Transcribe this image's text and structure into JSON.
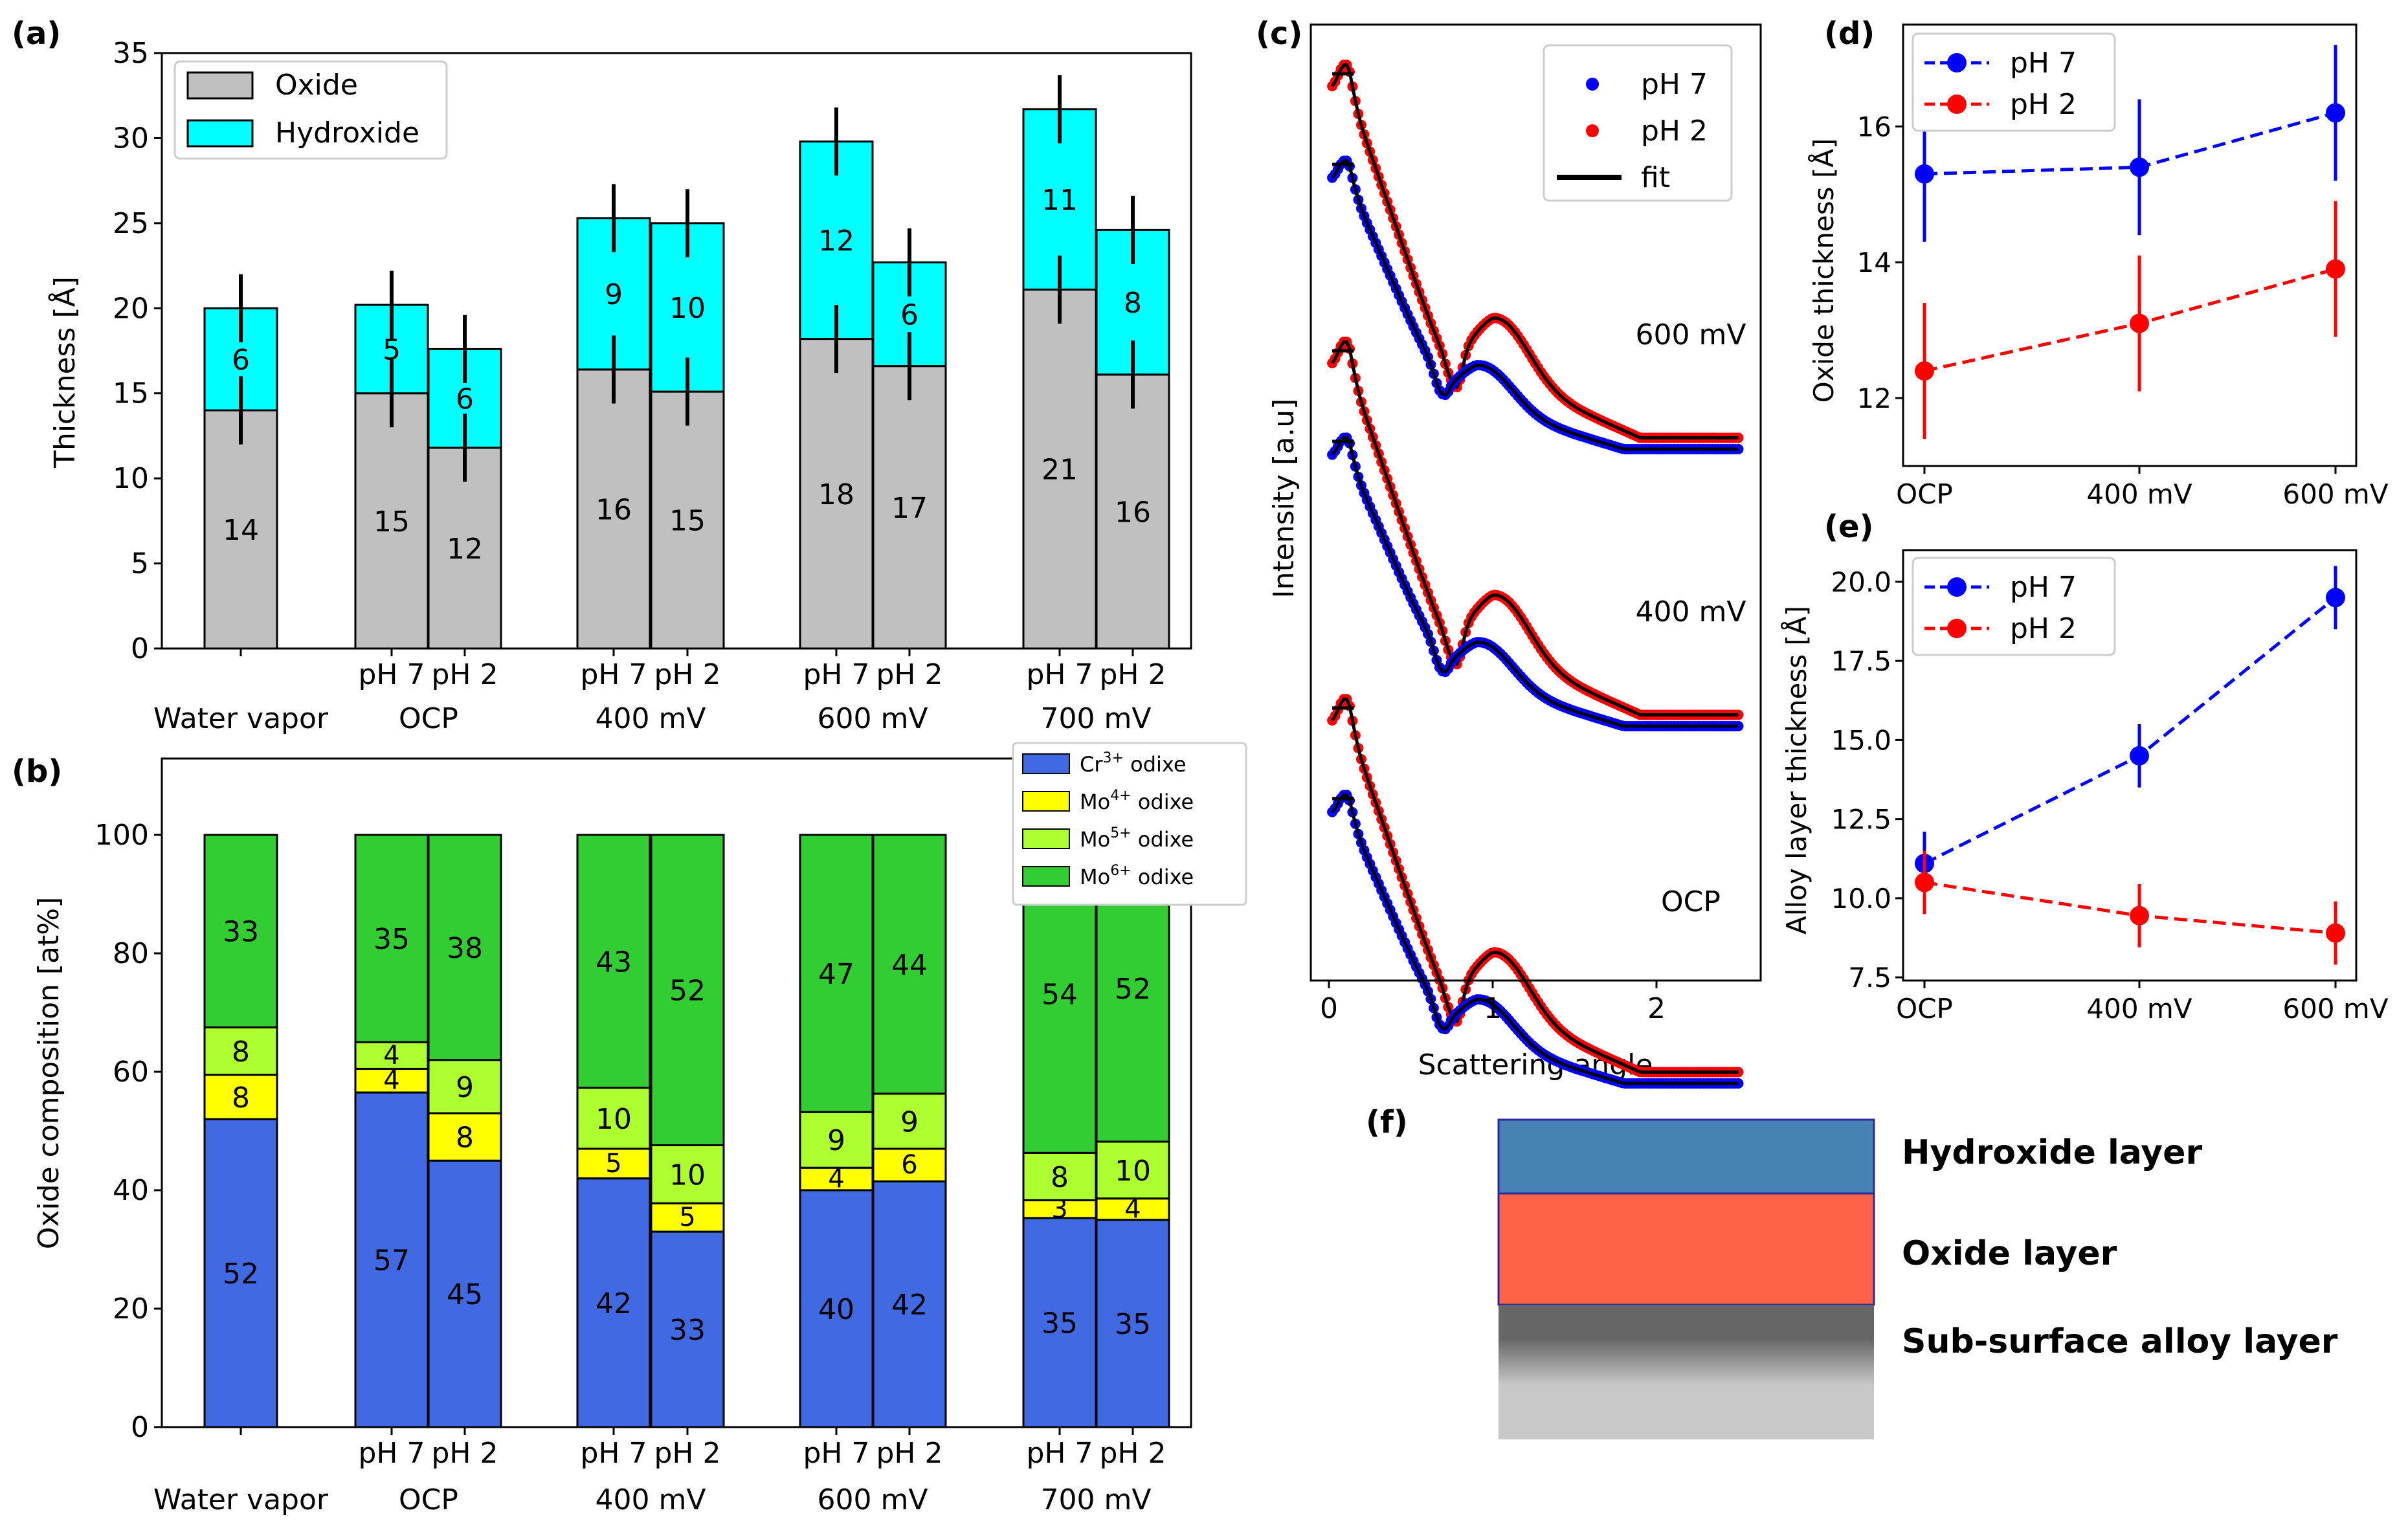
{
  "panels": {
    "a": {
      "letter": "(a)",
      "chart_data": {
        "type": "bar",
        "stacked": true,
        "ylabel": "Thickness [Å]",
        "ylim": [
          0,
          35
        ],
        "yticks": [
          0,
          5,
          10,
          15,
          20,
          25,
          30,
          35
        ],
        "legend": [
          "Oxide",
          "Hydroxide"
        ],
        "legend_position": "top-left",
        "colors": {
          "oxide": "#c0c0c0",
          "hydroxide": "#00ffff"
        },
        "bars": [
          {
            "group": "Water vapor",
            "sub": "",
            "oxide": 14,
            "hydroxide": 6,
            "oxide_label": "14",
            "hydroxide_label": "6",
            "oxide_err": 2,
            "total_err": 2
          },
          {
            "group": "OCP",
            "sub": "pH 7",
            "oxide": 15,
            "hydroxide": 5.2,
            "oxide_label": "15",
            "hydroxide_label": "5",
            "oxide_err": 2,
            "total_err": 2
          },
          {
            "group": "OCP",
            "sub": "pH 2",
            "oxide": 11.8,
            "hydroxide": 5.8,
            "oxide_label": "12",
            "hydroxide_label": "6",
            "oxide_err": 2,
            "total_err": 2
          },
          {
            "group": "400 mV",
            "sub": "pH 7",
            "oxide": 16.4,
            "hydroxide": 8.9,
            "oxide_label": "16",
            "hydroxide_label": "9",
            "oxide_err": 2,
            "total_err": 2
          },
          {
            "group": "400 mV",
            "sub": "pH 2",
            "oxide": 15.1,
            "hydroxide": 9.9,
            "oxide_label": "15",
            "hydroxide_label": "10",
            "oxide_err": 2,
            "total_err": 2
          },
          {
            "group": "600 mV",
            "sub": "pH 7",
            "oxide": 18.2,
            "hydroxide": 11.6,
            "oxide_label": "18",
            "hydroxide_label": "12",
            "oxide_err": 2,
            "total_err": 2
          },
          {
            "group": "600 mV",
            "sub": "pH 2",
            "oxide": 16.6,
            "hydroxide": 6.1,
            "oxide_label": "17",
            "hydroxide_label": "6",
            "oxide_err": 2,
            "total_err": 2
          },
          {
            "group": "700 mV",
            "sub": "pH 7",
            "oxide": 21.1,
            "hydroxide": 10.6,
            "oxide_label": "21",
            "hydroxide_label": "11",
            "oxide_err": 2,
            "total_err": 2
          },
          {
            "group": "700 mV",
            "sub": "pH 2",
            "oxide": 16.1,
            "hydroxide": 8.5,
            "oxide_label": "16",
            "hydroxide_label": "8",
            "oxide_err": 2,
            "total_err": 2
          }
        ],
        "group_labels": [
          "Water vapor",
          "OCP",
          "400 mV",
          "600 mV",
          "700 mV"
        ]
      }
    },
    "b": {
      "letter": "(b)",
      "chart_data": {
        "type": "bar",
        "stacked": true,
        "ylabel": "Oxide composition [at%]",
        "ylim": [
          0,
          100
        ],
        "yticks": [
          0,
          20,
          40,
          60,
          80,
          100
        ],
        "legend_position": "top-right",
        "series": [
          {
            "name": "Cr³⁺ odixe",
            "base": "Cr",
            "sup": "3+",
            "suffix": " odixe",
            "color": "#4169e1"
          },
          {
            "name": "Mo⁴⁺ odixe",
            "base": "Mo",
            "sup": "4+",
            "suffix": " odixe",
            "color": "#ffff00"
          },
          {
            "name": "Mo⁵⁺ odixe",
            "base": "Mo",
            "sup": "5+",
            "suffix": " odixe",
            "color": "#adff2f"
          },
          {
            "name": "Mo⁶⁺ odixe",
            "base": "Mo",
            "sup": "6+",
            "suffix": " odixe",
            "color": "#32cd32"
          }
        ],
        "bars": [
          {
            "group": "Water vapor",
            "sub": "",
            "values": [
              52,
              7.5,
              8,
              32.5
            ],
            "labels": [
              "52",
              "8",
              "8",
              "33"
            ]
          },
          {
            "group": "OCP",
            "sub": "pH 7",
            "values": [
              56.5,
              4,
              4.5,
              35
            ],
            "labels": [
              "57",
              "4",
              "4",
              "35"
            ]
          },
          {
            "group": "OCP",
            "sub": "pH 2",
            "values": [
              45,
              8,
              9,
              38
            ],
            "labels": [
              "45",
              "8",
              "9",
              "38"
            ]
          },
          {
            "group": "400 mV",
            "sub": "pH 7",
            "values": [
              42,
              5,
              10.3,
              42.7
            ],
            "labels": [
              "42",
              "5",
              "10",
              "43"
            ]
          },
          {
            "group": "400 mV",
            "sub": "pH 2",
            "values": [
              33,
              4.8,
              9.8,
              52.4
            ],
            "labels": [
              "33",
              "5",
              "10",
              "52"
            ]
          },
          {
            "group": "600 mV",
            "sub": "pH 7",
            "values": [
              40,
              3.8,
              9.4,
              46.8
            ],
            "labels": [
              "40",
              "4",
              "9",
              "47"
            ]
          },
          {
            "group": "600 mV",
            "sub": "pH 2",
            "values": [
              41.5,
              5.5,
              9.3,
              43.7
            ],
            "labels": [
              "42",
              "6",
              "9",
              "44"
            ]
          },
          {
            "group": "700 mV",
            "sub": "pH 7",
            "values": [
              35.3,
              3,
              8,
              53.7
            ],
            "labels": [
              "35",
              "3",
              "8",
              "54"
            ]
          },
          {
            "group": "700 mV",
            "sub": "pH 2",
            "values": [
              35,
              3.6,
              9.6,
              51.8
            ],
            "labels": [
              "35",
              "4",
              "10",
              "52"
            ]
          }
        ],
        "group_labels": [
          "Water vapor",
          "OCP",
          "400 mV",
          "600 mV",
          "700 mV"
        ]
      }
    },
    "c": {
      "letter": "(c)",
      "chart_data": {
        "type": "scatter",
        "xlabel": "Scattering angle",
        "ylabel": "Intensity [a.u]",
        "xlim": [
          -0.12,
          2.62
        ],
        "xticks": [
          0,
          1,
          2
        ],
        "legend": [
          {
            "name": "pH 7",
            "color": "#0000ff",
            "kind": "dot"
          },
          {
            "name": "pH 2",
            "color": "#ff0000",
            "kind": "dot"
          },
          {
            "name": "fit",
            "color": "#000000",
            "kind": "line"
          }
        ],
        "legend_position": "top-right",
        "curve_x_end": 2.5,
        "pairs": [
          {
            "label": "600 mV",
            "red_offset": 0,
            "blue_offset": 0
          },
          {
            "label": "400 mV",
            "red_offset": 1,
            "blue_offset": 1
          },
          {
            "label": "OCP",
            "red_offset": 2,
            "blue_offset": 2
          }
        ]
      }
    },
    "d": {
      "letter": "(d)",
      "chart_data": {
        "type": "line",
        "ylabel": "Oxide thickness [Å]",
        "categories": [
          "OCP",
          "400 mV",
          "600 mV"
        ],
        "ylim": [
          11,
          17.5
        ],
        "yticks": [
          12,
          14,
          16
        ],
        "legend_position": "top-left",
        "series": [
          {
            "name": "pH 7",
            "color": "#0000ff",
            "values": [
              15.3,
              15.4,
              16.2
            ],
            "errors": [
              1.0,
              1.0,
              1.0
            ]
          },
          {
            "name": "pH 2",
            "color": "#ff0000",
            "values": [
              12.4,
              13.1,
              13.9
            ],
            "errors": [
              1.0,
              1.0,
              1.0
            ]
          }
        ]
      }
    },
    "e": {
      "letter": "(e)",
      "chart_data": {
        "type": "line",
        "ylabel": "Alloy layer thickness [Å]",
        "categories": [
          "OCP",
          "400 mV",
          "600 mV"
        ],
        "ylim": [
          7.4,
          21.0
        ],
        "yticks": [
          7.5,
          10.0,
          12.5,
          15.0,
          17.5,
          20.0
        ],
        "ytick_labels": [
          "7.5",
          "10.0",
          "12.5",
          "15.0",
          "17.5",
          "20.0"
        ],
        "legend_position": "top-left",
        "series": [
          {
            "name": "pH 7",
            "color": "#0000ff",
            "values": [
              11.1,
              14.5,
              19.5
            ],
            "errors": [
              1.0,
              1.0,
              1.0
            ]
          },
          {
            "name": "pH 2",
            "color": "#ff0000",
            "values": [
              10.5,
              9.45,
              8.9
            ],
            "errors": [
              1.0,
              1.0,
              1.0
            ]
          }
        ]
      }
    },
    "f": {
      "letter": "(f)",
      "layers": [
        {
          "label": "Hydroxide layer",
          "color": "#4682b4"
        },
        {
          "label": "Oxide layer",
          "color": "#ff6347"
        },
        {
          "label": "Sub-surface alloy layer",
          "color_top": "#666666",
          "color_bottom": "#c8c8c8"
        }
      ]
    }
  }
}
